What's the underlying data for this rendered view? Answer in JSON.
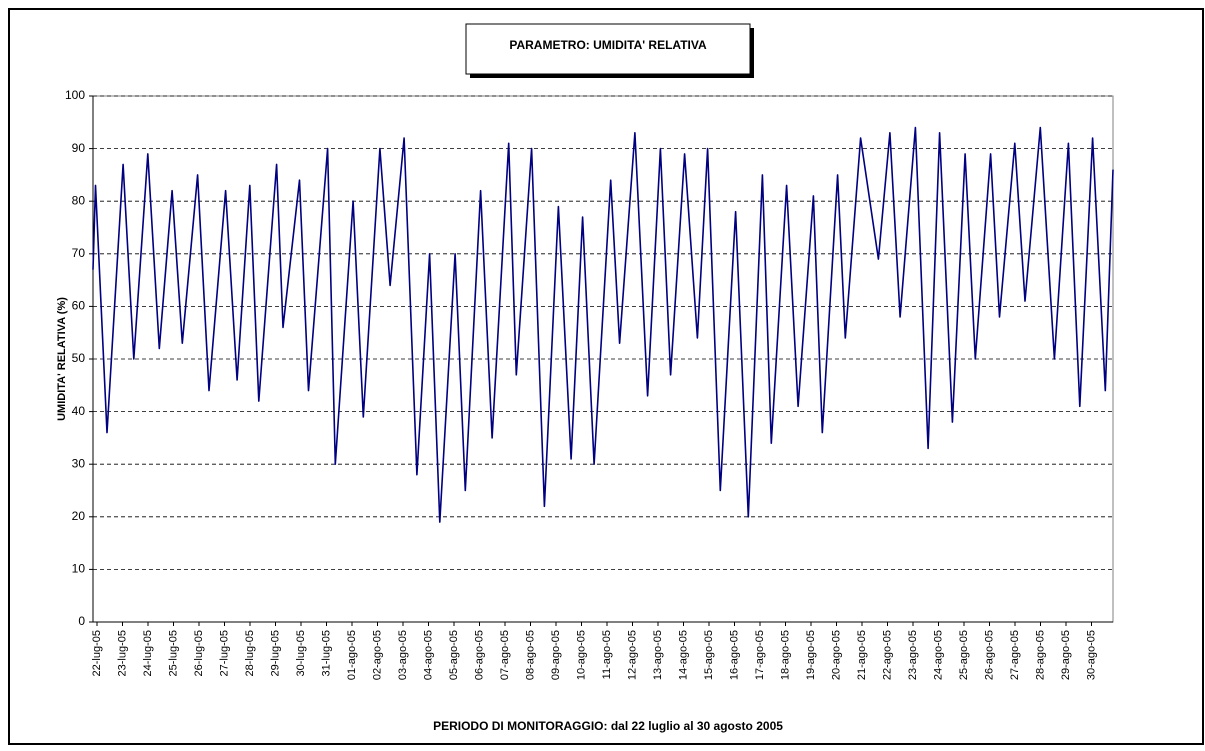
{
  "chart_data": {
    "type": "line",
    "title": "PARAMETRO: UMIDITA' RELATIVA",
    "y_label": "UMIDITA' RELATIVA (%)",
    "x_label": "PERIODO DI MONITORAGGIO: dal 22 luglio al 30 agosto 2005",
    "color": "#000080",
    "grid": true,
    "ylim": [
      0,
      100
    ],
    "yticks": [
      0,
      10,
      20,
      30,
      40,
      50,
      60,
      70,
      80,
      90,
      100
    ],
    "xlim": [
      0,
      40
    ],
    "xticks": [
      {
        "value": 0,
        "label": "22-lug-05"
      },
      {
        "value": 1,
        "label": "23-lug-05"
      },
      {
        "value": 2,
        "label": "24-lug-05"
      },
      {
        "value": 3,
        "label": "25-lug-05"
      },
      {
        "value": 4,
        "label": "26-lug-05"
      },
      {
        "value": 5,
        "label": "27-lug-05"
      },
      {
        "value": 6,
        "label": "28-lug-05"
      },
      {
        "value": 7,
        "label": "29-lug-05"
      },
      {
        "value": 8,
        "label": "30-lug-05"
      },
      {
        "value": 9,
        "label": "31-lug-05"
      },
      {
        "value": 10,
        "label": "01-ago-05"
      },
      {
        "value": 11,
        "label": "02-ago-05"
      },
      {
        "value": 12,
        "label": "03-ago-05"
      },
      {
        "value": 13,
        "label": "04-ago-05"
      },
      {
        "value": 14,
        "label": "05-ago-05"
      },
      {
        "value": 15,
        "label": "06-ago-05"
      },
      {
        "value": 16,
        "label": "07-ago-05"
      },
      {
        "value": 17,
        "label": "08-ago-05"
      },
      {
        "value": 18,
        "label": "09-ago-05"
      },
      {
        "value": 19,
        "label": "10-ago-05"
      },
      {
        "value": 20,
        "label": "11-ago-05"
      },
      {
        "value": 21,
        "label": "12-ago-05"
      },
      {
        "value": 22,
        "label": "13-ago-05"
      },
      {
        "value": 23,
        "label": "14-ago-05"
      },
      {
        "value": 24,
        "label": "15-ago-05"
      },
      {
        "value": 25,
        "label": "16-ago-05"
      },
      {
        "value": 26,
        "label": "17-ago-05"
      },
      {
        "value": 27,
        "label": "18-ago-05"
      },
      {
        "value": 28,
        "label": "19-ago-05"
      },
      {
        "value": 29,
        "label": "20-ago-05"
      },
      {
        "value": 30,
        "label": "21-ago-05"
      },
      {
        "value": 31,
        "label": "22-ago-05"
      },
      {
        "value": 32,
        "label": "23-ago-05"
      },
      {
        "value": 33,
        "label": "24-ago-05"
      },
      {
        "value": 34,
        "label": "25-ago-05"
      },
      {
        "value": 35,
        "label": "26-ago-05"
      },
      {
        "value": 36,
        "label": "27-ago-05"
      },
      {
        "value": 37,
        "label": "28-ago-05"
      },
      {
        "value": 38,
        "label": "29-ago-05"
      },
      {
        "value": 39,
        "label": "30-ago-05"
      }
    ],
    "x": [
      0,
      0.1,
      0.55,
      1.18,
      1.6,
      2.15,
      2.6,
      3.1,
      3.5,
      4.1,
      4.55,
      5.2,
      5.65,
      6.15,
      6.5,
      7.2,
      7.45,
      8.1,
      8.45,
      9.2,
      9.5,
      10.2,
      10.6,
      11.25,
      11.65,
      12.2,
      12.7,
      13.2,
      13.6,
      14.2,
      14.6,
      15.2,
      15.65,
      16.3,
      16.6,
      17.2,
      17.7,
      18.25,
      18.75,
      19.2,
      19.65,
      20.3,
      20.65,
      21.25,
      21.75,
      22.25,
      22.65,
      23.2,
      23.7,
      24.1,
      24.6,
      25.2,
      25.7,
      26.25,
      26.6,
      27.2,
      27.65,
      28.25,
      28.6,
      29.2,
      29.5,
      30.1,
      30.8,
      31.25,
      31.65,
      32.25,
      32.75,
      33.2,
      33.7,
      34.2,
      34.6,
      35.2,
      35.55,
      36.15,
      36.55,
      37.15,
      37.7,
      38.25,
      38.7,
      39.2,
      39.7,
      40
    ],
    "values": [
      67,
      83,
      36,
      87,
      50,
      89,
      52,
      82,
      53,
      85,
      44,
      82,
      46,
      83,
      42,
      87,
      56,
      84,
      44,
      90,
      30,
      80,
      39,
      90,
      64,
      92,
      28,
      70,
      19,
      70,
      25,
      82,
      35,
      91,
      47,
      90,
      22,
      79,
      31,
      77,
      30,
      84,
      53,
      93,
      43,
      90,
      47,
      89,
      54,
      90,
      25,
      78,
      20,
      85,
      34,
      83,
      41,
      81,
      36,
      85,
      54,
      92,
      69,
      93,
      58,
      94,
      33,
      93,
      38,
      89,
      50,
      89,
      58,
      91,
      61,
      94,
      50,
      91,
      41,
      92,
      44,
      86
    ]
  }
}
